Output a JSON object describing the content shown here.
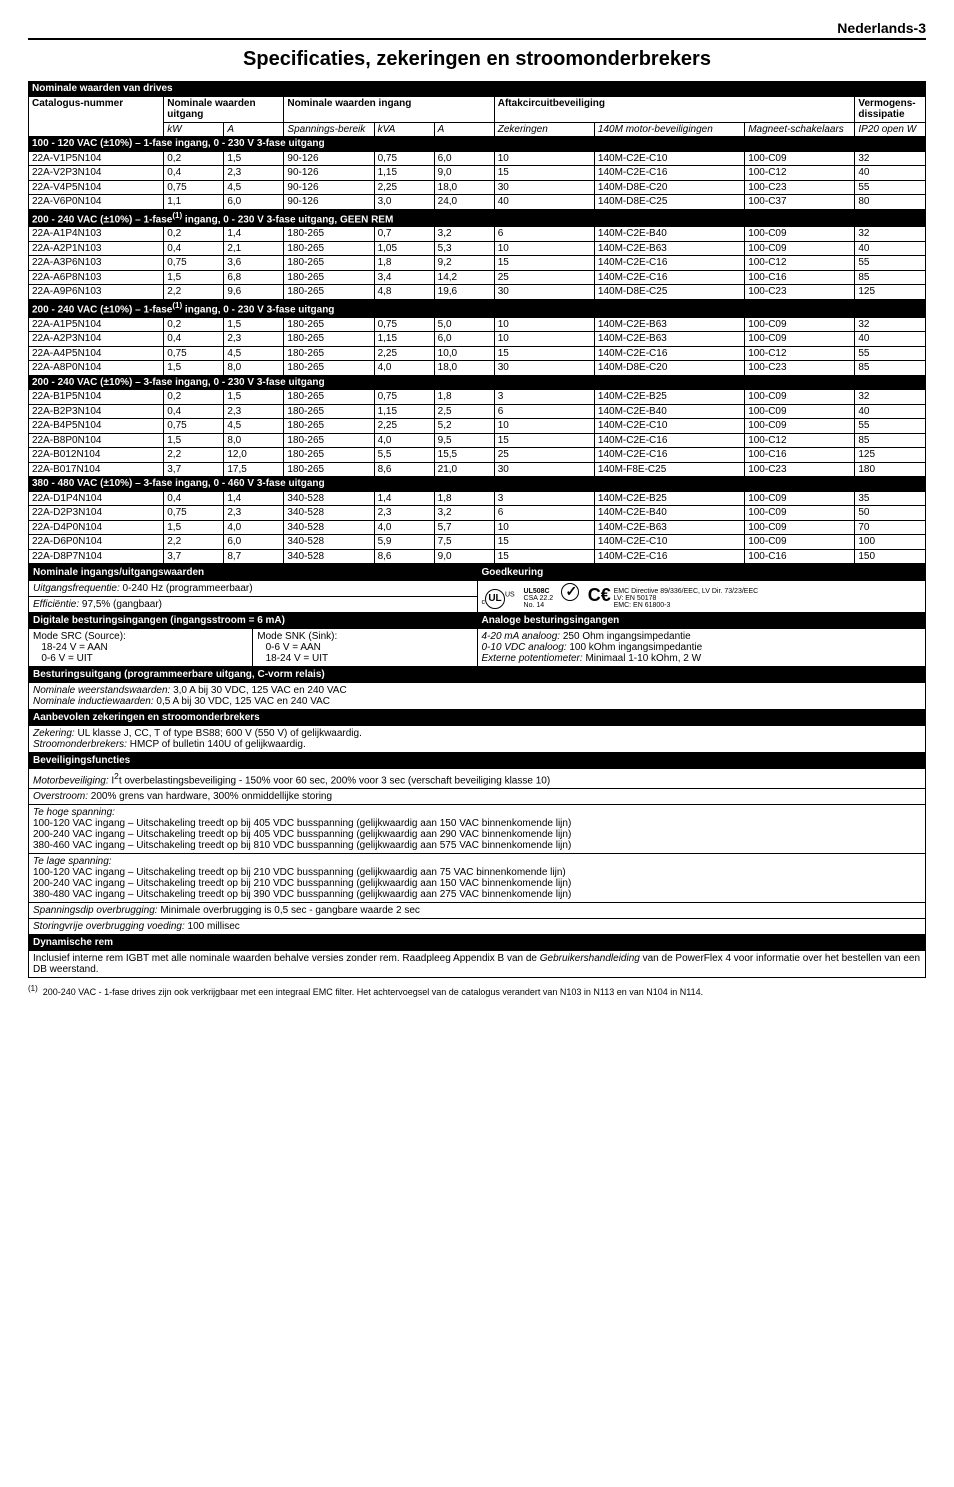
{
  "page_header": "Nederlands-3",
  "title": "Specificaties, zekeringen en stroomonderbrekers",
  "table": {
    "section_title": "Nominale waarden van drives",
    "head_top": {
      "catalog": "Catalogus-nummer",
      "nom_out": "Nominale waarden uitgang",
      "nom_in": "Nominale waarden ingang",
      "branch": "Aftakcircuitbeveiliging",
      "power": "Vermogens-dissipatie"
    },
    "head_bot": {
      "kW": "kW",
      "A1": "A",
      "span": "Spannings-bereik",
      "kVA": "kVA",
      "A2": "A",
      "fuse": "Zekeringen",
      "motor": "140M motor-beveiligingen",
      "mag": "Magneet-schakelaars",
      "ip20": "IP20 open W"
    },
    "groups": [
      {
        "label_html": "100 - 120 VAC (±10%) – 1-fase ingang, 0 - 230 V 3-fase uitgang",
        "rows": [
          [
            "22A-V1P5N104",
            "0,2",
            "1,5",
            "90-126",
            "0,75",
            "6,0",
            "10",
            "140M-C2E-C10",
            "100-C09",
            "32"
          ],
          [
            "22A-V2P3N104",
            "0,4",
            "2,3",
            "90-126",
            "1,15",
            "9,0",
            "15",
            "140M-C2E-C16",
            "100-C12",
            "40"
          ],
          [
            "22A-V4P5N104",
            "0,75",
            "4,5",
            "90-126",
            "2,25",
            "18,0",
            "30",
            "140M-D8E-C20",
            "100-C23",
            "55"
          ],
          [
            "22A-V6P0N104",
            "1,1",
            "6,0",
            "90-126",
            "3,0",
            "24,0",
            "40",
            "140M-D8E-C25",
            "100-C37",
            "80"
          ]
        ]
      },
      {
        "label_html": "200 - 240 VAC (±10%) – 1-fase<sup>(1)</sup> ingang, 0 - 230 V 3-fase uitgang, GEEN REM",
        "rows": [
          [
            "22A-A1P4N103",
            "0,2",
            "1,4",
            "180-265",
            "0,7",
            "3,2",
            "6",
            "140M-C2E-B40",
            "100-C09",
            "32"
          ],
          [
            "22A-A2P1N103",
            "0,4",
            "2,1",
            "180-265",
            "1,05",
            "5,3",
            "10",
            "140M-C2E-B63",
            "100-C09",
            "40"
          ],
          [
            "22A-A3P6N103",
            "0,75",
            "3,6",
            "180-265",
            "1,8",
            "9,2",
            "15",
            "140M-C2E-C16",
            "100-C12",
            "55"
          ],
          [
            "22A-A6P8N103",
            "1,5",
            "6,8",
            "180-265",
            "3,4",
            "14,2",
            "25",
            "140M-C2E-C16",
            "100-C16",
            "85"
          ],
          [
            "22A-A9P6N103",
            "2,2",
            "9,6",
            "180-265",
            "4,8",
            "19,6",
            "30",
            "140M-D8E-C25",
            "100-C23",
            "125"
          ]
        ]
      },
      {
        "label_html": "200 - 240 VAC (±10%) – 1-fase<sup>(1)</sup> ingang, 0 - 230 V 3-fase uitgang",
        "rows": [
          [
            "22A-A1P5N104",
            "0,2",
            "1,5",
            "180-265",
            "0,75",
            "5,0",
            "10",
            "140M-C2E-B63",
            "100-C09",
            "32"
          ],
          [
            "22A-A2P3N104",
            "0,4",
            "2,3",
            "180-265",
            "1,15",
            "6,0",
            "10",
            "140M-C2E-B63",
            "100-C09",
            "40"
          ],
          [
            "22A-A4P5N104",
            "0,75",
            "4,5",
            "180-265",
            "2,25",
            "10,0",
            "15",
            "140M-C2E-C16",
            "100-C12",
            "55"
          ],
          [
            "22A-A8P0N104",
            "1,5",
            "8,0",
            "180-265",
            "4,0",
            "18,0",
            "30",
            "140M-D8E-C20",
            "100-C23",
            "85"
          ]
        ]
      },
      {
        "label_html": "200 - 240 VAC (±10%) – 3-fase ingang, 0 - 230 V 3-fase uitgang",
        "rows": [
          [
            "22A-B1P5N104",
            "0,2",
            "1,5",
            "180-265",
            "0,75",
            "1,8",
            "3",
            "140M-C2E-B25",
            "100-C09",
            "32"
          ],
          [
            "22A-B2P3N104",
            "0,4",
            "2,3",
            "180-265",
            "1,15",
            "2,5",
            "6",
            "140M-C2E-B40",
            "100-C09",
            "40"
          ],
          [
            "22A-B4P5N104",
            "0,75",
            "4,5",
            "180-265",
            "2,25",
            "5,2",
            "10",
            "140M-C2E-C10",
            "100-C09",
            "55"
          ],
          [
            "22A-B8P0N104",
            "1,5",
            "8,0",
            "180-265",
            "4,0",
            "9,5",
            "15",
            "140M-C2E-C16",
            "100-C12",
            "85"
          ],
          [
            "22A-B012N104",
            "2,2",
            "12,0",
            "180-265",
            "5,5",
            "15,5",
            "25",
            "140M-C2E-C16",
            "100-C16",
            "125"
          ],
          [
            "22A-B017N104",
            "3,7",
            "17,5",
            "180-265",
            "8,6",
            "21,0",
            "30",
            "140M-F8E-C25",
            "100-C23",
            "180"
          ]
        ]
      },
      {
        "label_html": "380 - 480 VAC (±10%) – 3-fase ingang, 0 - 460 V 3-fase uitgang",
        "rows": [
          [
            "22A-D1P4N104",
            "0,4",
            "1,4",
            "340-528",
            "1,4",
            "1,8",
            "3",
            "140M-C2E-B25",
            "100-C09",
            "35"
          ],
          [
            "22A-D2P3N104",
            "0,75",
            "2,3",
            "340-528",
            "2,3",
            "3,2",
            "6",
            "140M-C2E-B40",
            "100-C09",
            "50"
          ],
          [
            "22A-D4P0N104",
            "1,5",
            "4,0",
            "340-528",
            "4,0",
            "5,7",
            "10",
            "140M-C2E-B63",
            "100-C09",
            "70"
          ],
          [
            "22A-D6P0N104",
            "2,2",
            "6,0",
            "340-528",
            "5,9",
            "7,5",
            "15",
            "140M-C2E-C10",
            "100-C09",
            "100"
          ],
          [
            "22A-D8P7N104",
            "3,7",
            "8,7",
            "340-528",
            "8,6",
            "9,0",
            "15",
            "140M-C2E-C16",
            "100-C16",
            "150"
          ]
        ]
      }
    ],
    "col_widths_pct": [
      13.5,
      6,
      6,
      9,
      6,
      6,
      10,
      15,
      11,
      6
    ]
  },
  "io_header_left": "Nominale ingangs/uitgangswaarden",
  "io_header_right": "Goedkeuring",
  "io_row1_left_html": "<span class='i'>Uitgangsfrequentie:</span> 0-240 Hz (programmeerbaar)",
  "io_row2_left_html": "<span class='i'>Efficiëntie:</span> 97,5% (gangbaar)",
  "cert_codes": {
    "ul": "UL508C",
    "csa": "CSA 22.2",
    "csa_no": "No. 14",
    "emc": "EMC Directive 89/336/EEC, LV Dir. 73/23/EEC",
    "lv": "LV:   EN 50178",
    "emc2": "EMC: EN 61800-3"
  },
  "dig_header": "Digitale besturingsingangen (ingangsstroom = 6 mA)",
  "ana_header": "Analoge besturingsingangen",
  "mode_src": "Mode SRC (Source):",
  "mode_snk": "Mode SNK (Sink):",
  "src1": "18-24 V = AAN",
  "src2": "0-6 V = UIT",
  "snk1": "0-6 V = AAN",
  "snk2": "18-24 V = UIT",
  "ana1_html": "<span class='i'>4-20 mA analoog:</span> 250 Ohm ingangsimpedantie",
  "ana2_html": "<span class='i'>0-10 VDC analoog:</span> 100 kOhm ingangsimpedantie",
  "ana3_html": "<span class='i'>Externe potentiometer:</span> Minimaal 1-10 kOhm, 2 W",
  "ctl_header": "Besturingsuitgang (programmeerbare uitgang, C-vorm relais)",
  "ctl_body_html": "<span class='i'>Nominale weerstandswaarden:</span> 3,0 A bij 30 VDC, 125 VAC en 240 VAC<br><span class='i'>Nominale inductiewaarden:</span> 0,5 A bij 30 VDC, 125 VAC en 240 VAC",
  "fuse_header": "Aanbevolen zekeringen en stroomonderbrekers",
  "fuse_body_html": "<span class='i'>Zekering:</span> UL klasse J, CC, T of type BS88; 600 V (550 V) of gelijkwaardig.<br><span class='i'>Stroomonderbrekers:</span> HMCP of bulletin 140U of gelijkwaardig.",
  "prot_header": "Beveiligingsfuncties",
  "prot_row1_html": "<span class='i'>Motorbeveiliging:</span> I<sup>2</sup>t overbelastingsbeveiliging - 150% voor 60 sec, 200% voor 3 sec (verschaft beveiliging klasse 10)",
  "prot_row2_html": "<span class='i'>Overstroom:</span> 200% grens van hardware, 300% onmiddellijke storing",
  "prot_row3_html": "<span class='i'>Te hoge spanning:</span><br>100-120 VAC ingang – Uitschakeling treedt op bij 405 VDC busspanning (gelijkwaardig aan 150 VAC binnenkomende lijn)<br>200-240 VAC ingang – Uitschakeling treedt op bij 405 VDC busspanning (gelijkwaardig aan 290 VAC binnenkomende lijn)<br>380-460 VAC ingang – Uitschakeling treedt op bij 810 VDC busspanning (gelijkwaardig aan 575 VAC binnenkomende lijn)",
  "prot_row4_html": "<span class='i'>Te lage spanning:</span><br>100-120 VAC ingang – Uitschakeling treedt op bij 210 VDC busspanning (gelijkwaardig aan 75 VAC binnenkomende lijn)<br>200-240 VAC ingang – Uitschakeling treedt op bij 210 VDC busspanning (gelijkwaardig aan 150 VAC binnenkomende lijn)<br>380-480 VAC ingang – Uitschakeling treedt op bij 390 VDC busspanning (gelijkwaardig aan 275 VAC binnenkomende lijn)",
  "prot_row5_html": "<span class='i'>Spanningsdip overbrugging:</span> Minimale overbrugging is 0,5 sec - gangbare waarde 2 sec",
  "prot_row6_html": "<span class='i'>Storingvrije overbrugging voeding:</span> 100 millisec",
  "dyn_header": "Dynamische rem",
  "dyn_body_html": "Inclusief interne rem IGBT met alle nominale waarden behalve versies zonder rem. Raadpleeg Appendix B van de <span class='i'>Gebruikershandleiding</span> van de PowerFlex 4 voor informatie over het bestellen van een DB weerstand.",
  "footnote_html": "<sup>(1)</sup>&nbsp;&nbsp;200-240 VAC - 1-fase drives zijn ook verkrijgbaar met een integraal EMC filter. Het achtervoegsel van de catalogus verandert van N103 in N113 en van N104 in N114."
}
